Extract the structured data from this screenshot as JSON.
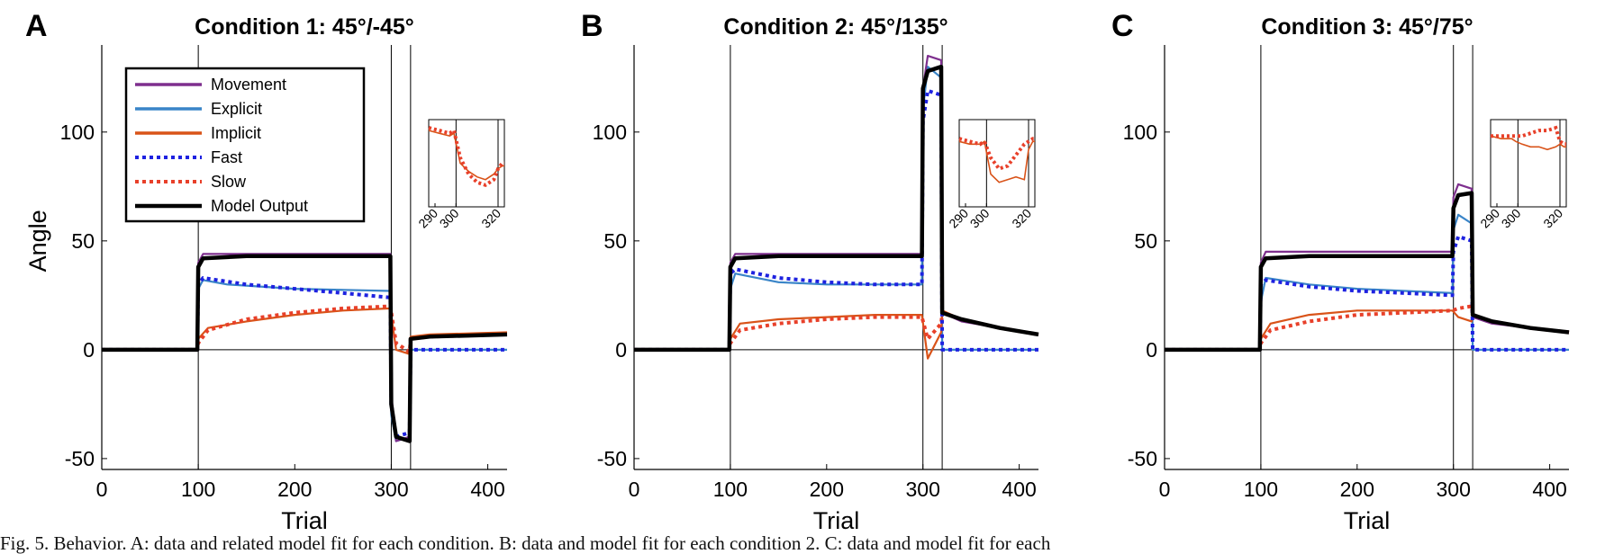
{
  "caption": "Fig. 5. Behavior. A: data and related model fit for each condition. B: data and model fit for each condition 2. C: data and model fit for each",
  "colors": {
    "movement": "#7e2f8e",
    "explicit": "#3a85c8",
    "implicit": "#d95319",
    "fast": "#1e22e0",
    "slow": "#e8402a",
    "model": "#000000"
  },
  "chart_data": [
    {
      "panel_letter": "A",
      "type": "line",
      "title": "Condition 1: 45°/-45°",
      "xlabel": "Trial",
      "ylabel": "Angle",
      "xlim": [
        0,
        420
      ],
      "ylim": [
        -55,
        140
      ],
      "xticks": [
        0,
        100,
        200,
        300,
        400
      ],
      "yticks": [
        -50,
        0,
        50,
        100
      ],
      "vlines": [
        100,
        300,
        320
      ],
      "legend": {
        "placement": "top-left",
        "entries": [
          "Movement",
          "Explicit",
          "Implicit",
          "Fast",
          "Slow",
          "Model Output"
        ]
      },
      "series": [
        {
          "name": "Movement",
          "x": [
            0,
            99,
            100,
            105,
            120,
            200,
            299,
            300,
            305,
            319,
            320,
            330,
            420
          ],
          "y": [
            0,
            0,
            40,
            44,
            44,
            44,
            44,
            -20,
            -42,
            -40,
            5,
            6,
            7
          ]
        },
        {
          "name": "Explicit",
          "x": [
            0,
            99,
            100,
            105,
            130,
            200,
            299,
            300,
            305,
            319,
            320,
            420
          ],
          "y": [
            0,
            0,
            28,
            32,
            30,
            28,
            27,
            -30,
            -42,
            -40,
            0,
            0
          ]
        },
        {
          "name": "Implicit",
          "x": [
            0,
            99,
            100,
            110,
            150,
            200,
            250,
            299,
            305,
            319,
            320,
            340,
            420
          ],
          "y": [
            0,
            0,
            5,
            10,
            13,
            16,
            18,
            19,
            0,
            -2,
            6,
            7,
            8
          ]
        },
        {
          "name": "Fast",
          "x": [
            0,
            99,
            100,
            105,
            150,
            200,
            250,
            299,
            300,
            305,
            319,
            320,
            420
          ],
          "y": [
            0,
            0,
            30,
            33,
            30,
            28,
            26,
            24,
            -25,
            -40,
            -38,
            0,
            0
          ]
        },
        {
          "name": "Slow",
          "x": [
            0,
            99,
            100,
            110,
            150,
            200,
            250,
            299,
            305,
            319,
            320,
            340,
            420
          ],
          "y": [
            0,
            0,
            3,
            9,
            14,
            17,
            19,
            20,
            3,
            -1,
            5,
            6,
            7
          ]
        },
        {
          "name": "Model Output",
          "x": [
            0,
            99,
            100,
            105,
            150,
            299,
            300,
            305,
            319,
            320,
            340,
            420
          ],
          "y": [
            0,
            0,
            38,
            42,
            43,
            43,
            -25,
            -40,
            -42,
            5,
            6,
            7
          ]
        }
      ],
      "inset": {
        "xticks": [
          290,
          300,
          320
        ],
        "xlim": [
          287,
          323
        ],
        "ylim": [
          -8,
          24
        ],
        "vlines": [
          300,
          320
        ],
        "series": [
          {
            "name": "Implicit",
            "x": [
              287,
              292,
              297,
              299,
              302,
              306,
              310,
              314,
              318,
              320,
              322,
              323
            ],
            "y": [
              20,
              19,
              18,
              19,
              8,
              5,
              3,
              2,
              4,
              6,
              7,
              7
            ]
          },
          {
            "name": "Slow",
            "x": [
              287,
              292,
              297,
              299,
              302,
              306,
              310,
              314,
              318,
              320,
              322,
              323
            ],
            "y": [
              21,
              20,
              19,
              20,
              10,
              4,
              1,
              0,
              2,
              6,
              8,
              8
            ]
          }
        ]
      }
    },
    {
      "panel_letter": "B",
      "type": "line",
      "title": "Condition 2: 45°/135°",
      "xlabel": "Trial",
      "ylabel": "",
      "xlim": [
        0,
        420
      ],
      "ylim": [
        -55,
        140
      ],
      "xticks": [
        0,
        100,
        200,
        300,
        400
      ],
      "yticks": [
        -50,
        0,
        50,
        100
      ],
      "vlines": [
        100,
        300,
        320
      ],
      "series": [
        {
          "name": "Movement",
          "x": [
            0,
            99,
            100,
            105,
            150,
            200,
            299,
            300,
            305,
            319,
            320,
            340,
            420
          ],
          "y": [
            0,
            0,
            40,
            44,
            44,
            44,
            44,
            120,
            135,
            133,
            17,
            13,
            7
          ]
        },
        {
          "name": "Explicit",
          "x": [
            0,
            99,
            100,
            105,
            150,
            200,
            299,
            300,
            305,
            319,
            320,
            420
          ],
          "y": [
            0,
            0,
            28,
            35,
            31,
            30,
            30,
            110,
            130,
            125,
            0,
            0
          ]
        },
        {
          "name": "Implicit",
          "x": [
            0,
            99,
            100,
            110,
            150,
            200,
            250,
            299,
            305,
            319,
            320,
            340,
            380,
            420
          ],
          "y": [
            0,
            0,
            5,
            12,
            14,
            15,
            16,
            16,
            -4,
            8,
            18,
            14,
            10,
            7
          ]
        },
        {
          "name": "Fast",
          "x": [
            0,
            99,
            100,
            105,
            150,
            200,
            250,
            299,
            300,
            305,
            319,
            320,
            420
          ],
          "y": [
            0,
            0,
            35,
            37,
            33,
            31,
            30,
            30,
            105,
            119,
            117,
            0,
            0
          ]
        },
        {
          "name": "Slow",
          "x": [
            0,
            99,
            100,
            110,
            150,
            200,
            250,
            299,
            305,
            319,
            320,
            340,
            380,
            420
          ],
          "y": [
            0,
            0,
            3,
            9,
            12,
            14,
            15,
            15,
            5,
            12,
            17,
            14,
            10,
            7
          ]
        },
        {
          "name": "Model Output",
          "x": [
            0,
            99,
            100,
            105,
            150,
            299,
            300,
            305,
            319,
            320,
            340,
            380,
            420
          ],
          "y": [
            0,
            0,
            38,
            42,
            43,
            43,
            120,
            128,
            130,
            17,
            14,
            10,
            7
          ]
        }
      ],
      "inset": {
        "xticks": [
          290,
          300,
          320
        ],
        "xlim": [
          287,
          323
        ],
        "ylim": [
          -8,
          24
        ],
        "vlines": [
          300,
          320
        ],
        "series": [
          {
            "name": "Implicit",
            "x": [
              287,
              292,
              297,
              299,
              302,
              306,
              310,
              314,
              318,
              320,
              322,
              323
            ],
            "y": [
              16,
              15,
              15,
              16,
              4,
              1,
              2,
              3,
              2,
              13,
              16,
              16
            ]
          },
          {
            "name": "Slow",
            "x": [
              287,
              292,
              297,
              299,
              302,
              306,
              310,
              314,
              318,
              320,
              322,
              323
            ],
            "y": [
              17,
              16,
              15,
              16,
              10,
              6,
              7,
              11,
              15,
              16,
              17,
              17
            ]
          }
        ]
      }
    },
    {
      "panel_letter": "C",
      "type": "line",
      "title": "Condition 3: 45°/75°",
      "xlabel": "Trial",
      "ylabel": "",
      "xlim": [
        0,
        420
      ],
      "ylim": [
        -55,
        140
      ],
      "xticks": [
        0,
        100,
        200,
        300,
        400
      ],
      "yticks": [
        -50,
        0,
        50,
        100
      ],
      "vlines": [
        100,
        300,
        320
      ],
      "series": [
        {
          "name": "Movement",
          "x": [
            0,
            99,
            100,
            105,
            150,
            200,
            299,
            300,
            305,
            319,
            320,
            340,
            420
          ],
          "y": [
            0,
            0,
            40,
            45,
            45,
            45,
            45,
            70,
            76,
            74,
            15,
            12,
            8
          ]
        },
        {
          "name": "Explicit",
          "x": [
            0,
            99,
            100,
            105,
            150,
            200,
            299,
            300,
            305,
            319,
            320,
            420
          ],
          "y": [
            0,
            0,
            22,
            33,
            30,
            28,
            26,
            55,
            62,
            58,
            0,
            0
          ]
        },
        {
          "name": "Implicit",
          "x": [
            0,
            99,
            100,
            110,
            150,
            200,
            250,
            299,
            305,
            319,
            320,
            340,
            380,
            420
          ],
          "y": [
            0,
            0,
            5,
            12,
            16,
            18,
            18,
            18,
            15,
            13,
            16,
            13,
            10,
            8
          ]
        },
        {
          "name": "Fast",
          "x": [
            0,
            99,
            100,
            105,
            150,
            200,
            250,
            299,
            300,
            305,
            319,
            320,
            420
          ],
          "y": [
            0,
            0,
            30,
            32,
            29,
            27,
            26,
            25,
            45,
            52,
            50,
            0,
            0
          ]
        },
        {
          "name": "Slow",
          "x": [
            0,
            99,
            100,
            110,
            150,
            200,
            250,
            299,
            305,
            319,
            320,
            340,
            380,
            420
          ],
          "y": [
            0,
            0,
            3,
            9,
            13,
            16,
            17,
            18,
            19,
            20,
            16,
            13,
            10,
            8
          ]
        },
        {
          "name": "Model Output",
          "x": [
            0,
            99,
            100,
            105,
            150,
            299,
            300,
            305,
            319,
            320,
            340,
            380,
            420
          ],
          "y": [
            0,
            0,
            38,
            42,
            43,
            43,
            65,
            71,
            72,
            16,
            13,
            10,
            8
          ]
        }
      ],
      "inset": {
        "xticks": [
          290,
          300,
          320
        ],
        "xlim": [
          287,
          323
        ],
        "ylim": [
          -8,
          24
        ],
        "vlines": [
          300,
          320
        ],
        "series": [
          {
            "name": "Implicit",
            "x": [
              287,
              292,
              297,
              299,
              302,
              306,
              310,
              314,
              318,
              320,
              322,
              323
            ],
            "y": [
              18,
              17,
              17,
              16,
              15,
              14,
              14,
              13,
              14,
              15,
              14,
              14
            ]
          },
          {
            "name": "Slow",
            "x": [
              287,
              292,
              297,
              299,
              302,
              306,
              310,
              314,
              318,
              320,
              322,
              323
            ],
            "y": [
              18,
              18,
              18,
              18,
              18,
              19,
              20,
              20,
              21,
              16,
              15,
              15
            ]
          }
        ]
      }
    }
  ]
}
